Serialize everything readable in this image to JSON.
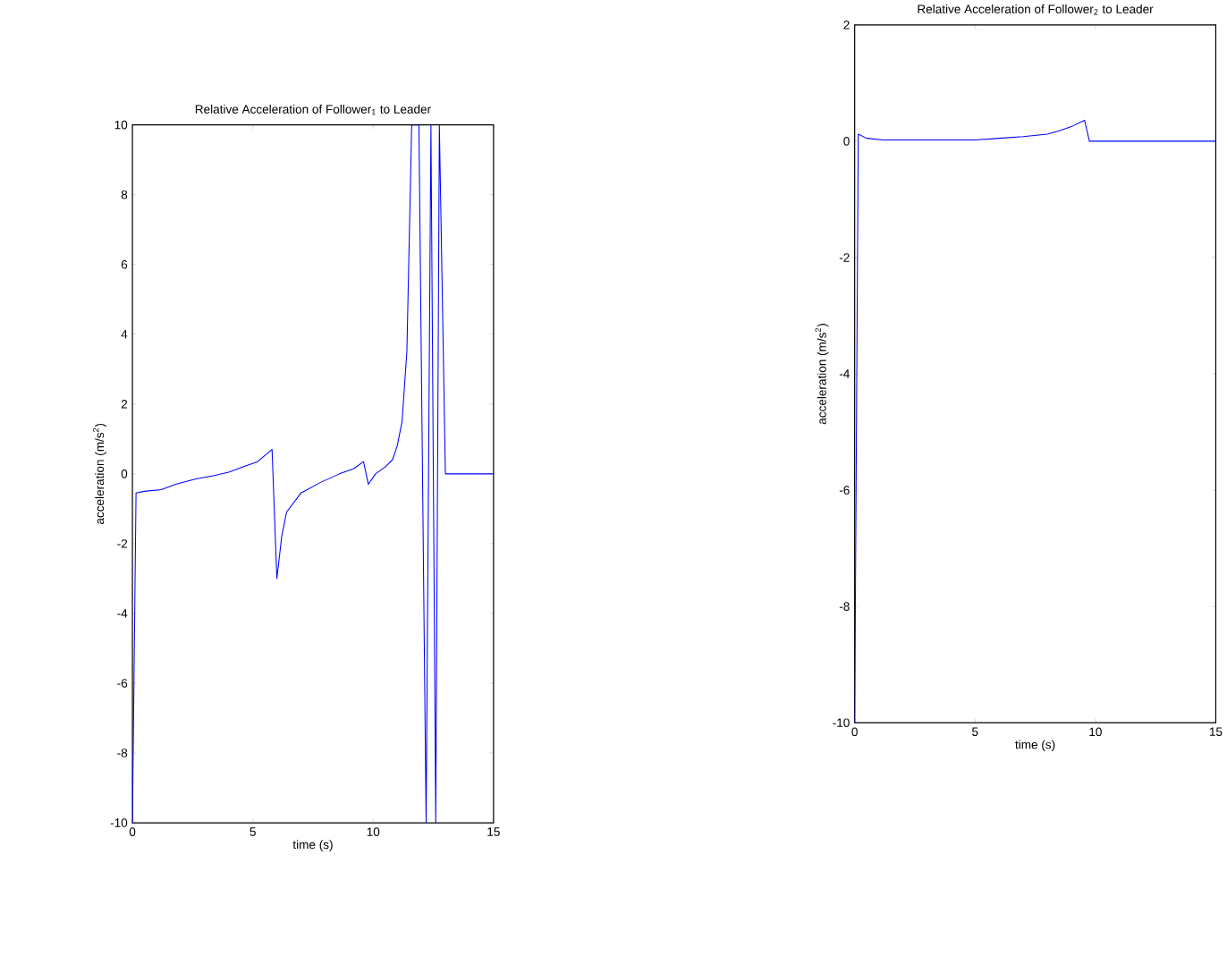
{
  "chart_data": [
    {
      "type": "line",
      "title": "Relative Acceleration of Follower$_{1}$ to Leader",
      "xlabel": "time (s)",
      "ylabel": "acceleration (m/s$^{2}$)",
      "color": "#0000ff",
      "x": [
        0,
        0.15,
        0.5,
        1.2,
        1.8,
        2.6,
        3.4,
        4.0,
        4.6,
        5.2,
        5.8,
        6.0,
        6.2,
        6.4,
        7.0,
        7.8,
        8.6,
        9.2,
        9.6,
        9.8,
        10.1,
        10.5,
        10.8,
        11.0,
        11.2,
        11.4,
        11.6,
        11.9,
        12.2,
        12.4,
        12.6,
        12.75,
        13.0,
        15
      ],
      "values": [
        -10,
        -0.55,
        -0.5,
        -0.45,
        -0.3,
        -0.15,
        -0.05,
        0.05,
        0.2,
        0.35,
        0.7,
        -3.0,
        -1.8,
        -1.1,
        -0.55,
        -0.25,
        0,
        0.15,
        0.35,
        -0.3,
        0,
        0.2,
        0.4,
        0.8,
        1.5,
        3.5,
        10,
        10,
        -10,
        10,
        -10,
        10,
        0,
        0
      ],
      "xlim": [
        0,
        15
      ],
      "ylim": [
        -10,
        10
      ],
      "xticks": [
        0,
        5,
        10,
        15
      ],
      "yticks": [
        -10,
        -8,
        -6,
        -4,
        -2,
        0,
        2,
        4,
        6,
        8,
        10
      ]
    },
    {
      "type": "line",
      "title": "Relative Acceleration of Follower$_{2}$ to Leader",
      "xlabel": "time (s)",
      "ylabel": "acceleration (m/s$^{2}$)",
      "color": "#0000ff",
      "x": [
        0,
        0.15,
        0.5,
        1.2,
        5,
        6,
        7,
        8,
        8.5,
        9,
        9.55,
        9.75,
        15
      ],
      "values": [
        -10,
        0.12,
        0.05,
        0.02,
        0.02,
        0.05,
        0.08,
        0.12,
        0.18,
        0.25,
        0.36,
        0,
        0
      ],
      "xlim": [
        0,
        15
      ],
      "ylim": [
        -10,
        2
      ],
      "xticks": [
        0,
        5,
        10,
        15
      ],
      "yticks": [
        -10,
        -8,
        -6,
        -4,
        -2,
        0,
        2
      ]
    }
  ]
}
